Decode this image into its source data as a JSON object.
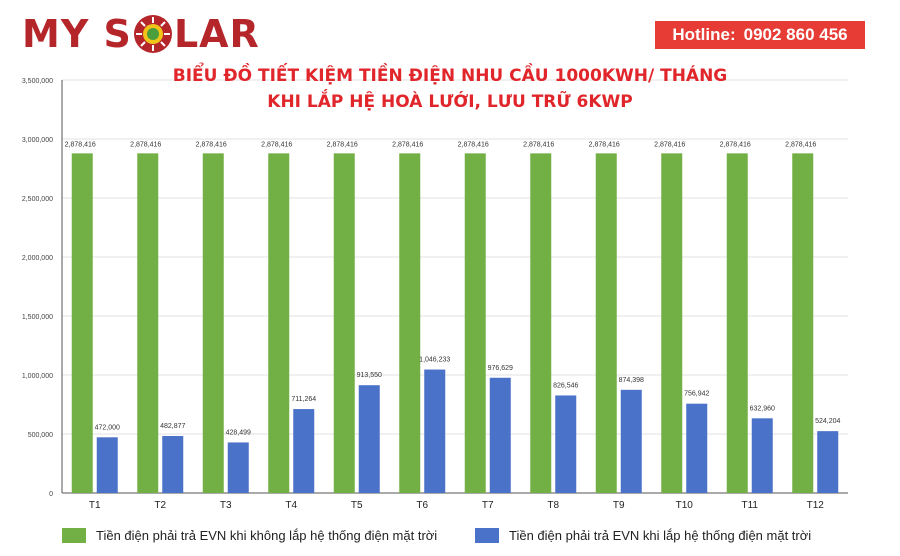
{
  "brand": {
    "prefix": "MY S",
    "suffix": "LAR"
  },
  "hotline": {
    "label": "Hotline:",
    "number": "0902 860 456"
  },
  "chart_data": {
    "type": "bar",
    "title_line1": "BIỂU ĐỒ TIẾT KIỆM TIỀN ĐIỆN NHU CẦU 1000KWH/ THÁNG",
    "title_line2": "KHI LẮP HỆ HOÀ LƯỚI, LƯU TRỮ 6KWP",
    "categories": [
      "T1",
      "T2",
      "T3",
      "T4",
      "T5",
      "T6",
      "T7",
      "T8",
      "T9",
      "T10",
      "T11",
      "T12"
    ],
    "series": [
      {
        "name": "Tiền điện phải trả EVN khi không lắp hệ thống điện mặt trời",
        "color": "#72b045",
        "values": [
          2878416,
          2878416,
          2878416,
          2878416,
          2878416,
          2878416,
          2878416,
          2878416,
          2878416,
          2878416,
          2878416,
          2878416
        ],
        "labels": [
          "2,878,416",
          "2,878,416",
          "2,878,416",
          "2,878,416",
          "2,878,416",
          "2,878,416",
          "2,878,416",
          "2,878,416",
          "2,878,416",
          "2,878,416",
          "2,878,416",
          "2,878,416"
        ]
      },
      {
        "name": "Tiền điện phải trả EVN khi lắp hệ thống điện mặt trời",
        "color": "#4a72c8",
        "values": [
          472000,
          482877,
          428499,
          711264,
          913550,
          1046233,
          976629,
          826546,
          874398,
          756942,
          632960,
          524204
        ],
        "labels": [
          "472,000",
          "482,877",
          "428,499",
          "711,264",
          "913,550",
          "1,046,233",
          "976,629",
          "826,546",
          "874,398",
          "756,942",
          "632,960",
          "524,204"
        ]
      }
    ],
    "y_ticks": [
      0,
      500000,
      1000000,
      1500000,
      2000000,
      2500000,
      3000000,
      3500000
    ],
    "y_tick_labels": [
      "0",
      "500,000",
      "1,000,000",
      "1,500,000",
      "2,000,000",
      "2,500,000",
      "3,000,000",
      "3,500,000"
    ],
    "ylim": [
      0,
      3500000
    ],
    "grid": true,
    "legend_position": "bottom"
  }
}
